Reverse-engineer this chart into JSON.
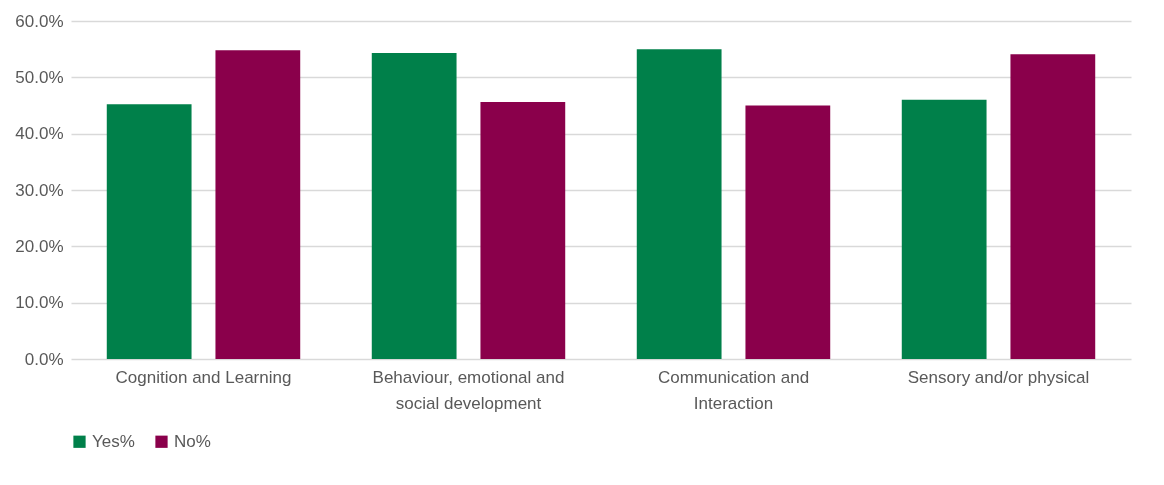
{
  "chart_data": {
    "type": "bar",
    "categories": [
      "Cognition and Learning",
      "Behaviour, emotional and social development",
      "Communication and Interaction",
      "Sensory and/or physical"
    ],
    "series": [
      {
        "name": "Yes%",
        "color": "#00804a",
        "values": [
          45.2,
          54.3,
          55.0,
          46.0
        ]
      },
      {
        "name": "No%",
        "color": "#8a004b",
        "values": [
          54.8,
          45.6,
          45.0,
          54.1
        ]
      }
    ],
    "ylim": [
      0,
      60
    ],
    "yticks": [
      {
        "value": 0,
        "label": "0.0%"
      },
      {
        "value": 10,
        "label": "10.0%"
      },
      {
        "value": 20,
        "label": "20.0%"
      },
      {
        "value": 30,
        "label": "30.0%"
      },
      {
        "value": 40,
        "label": "40.0%"
      },
      {
        "value": 50,
        "label": "50.0%"
      },
      {
        "value": 60,
        "label": "60.0%"
      }
    ],
    "grid": "y",
    "legend": "bottom"
  }
}
